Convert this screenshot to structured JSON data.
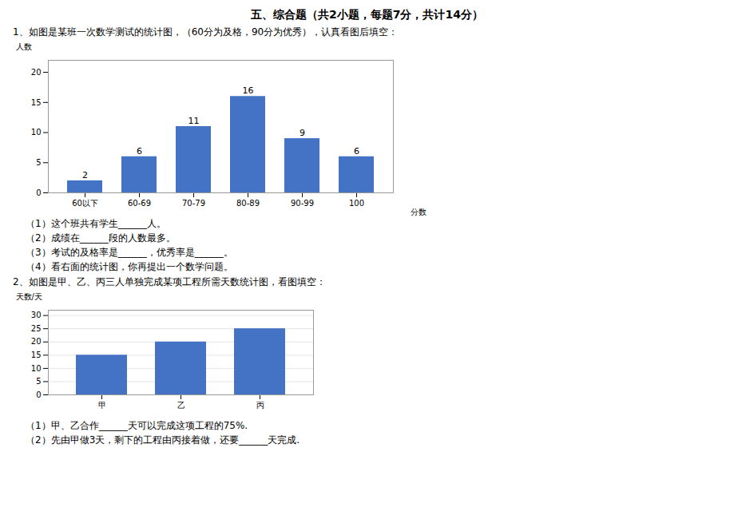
{
  "chart_data": [
    {
      "type": "bar",
      "title": "五、综合题（共2小题，每题7分，共计14分）",
      "subtitle": "1、如图是某班一次数学测试的统计图，（60分为及格，90分为优秀），认真看图后填空：",
      "ylabel": "人数",
      "xlabel": "分数",
      "categories": [
        "60以下",
        "60-69",
        "70-79",
        "80-89",
        "90-99",
        "100"
      ],
      "values": [
        2,
        6,
        11,
        16,
        9,
        6
      ],
      "color": "#4472C4",
      "ylim": [
        0,
        22
      ],
      "yticks": [
        0,
        5,
        10,
        15,
        20
      ],
      "data_labels": true,
      "grid": false,
      "annotations": [
        "（1）这个班共有学生______人。",
        "（2）成绩在______段的人数最多。",
        "（3）考试的及格率是______，优秀率是______。",
        "（4）看右面的统计图，你再提出一个数学问题。"
      ]
    },
    {
      "type": "bar",
      "subtitle": "2、如图是甲、乙、丙三人单独完成某项工程所需天数统计图，看图填空：",
      "ylabel": "天数/天",
      "categories": [
        "甲",
        "乙",
        "丙"
      ],
      "values": [
        15,
        20,
        25
      ],
      "color": "#4472C4",
      "ylim": [
        0,
        32
      ],
      "yticks": [
        0,
        5,
        10,
        15,
        20,
        25,
        30
      ],
      "grid": true,
      "annotations": [
        "（1）甲、乙合作______天可以完成这项工程的75%.",
        "（2）先由甲做3天，剩下的工程由丙接着做，还要______天完成."
      ]
    }
  ]
}
